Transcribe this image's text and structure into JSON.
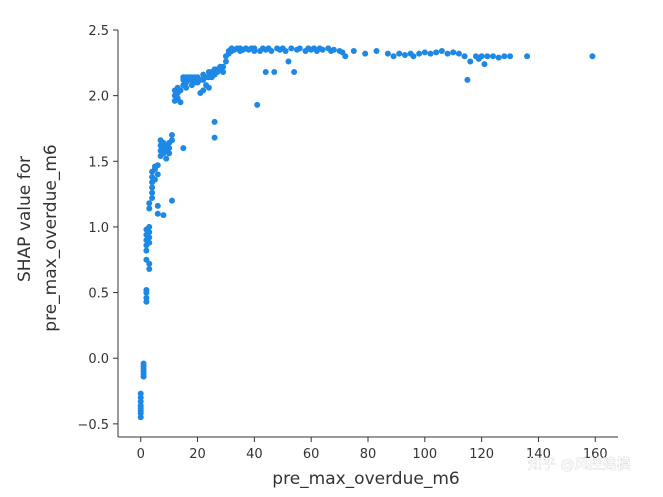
{
  "chart_data": {
    "type": "scatter",
    "xlabel": "pre_max_overdue_m6",
    "ylabel_lines": [
      "SHAP value for",
      "pre_max_overdue_m6"
    ],
    "x_ticks": [
      0,
      20,
      40,
      60,
      80,
      100,
      120,
      140,
      160
    ],
    "y_ticks": [
      -0.5,
      0.0,
      0.5,
      1.0,
      1.5,
      2.0,
      2.5
    ],
    "x_tick_labels": [
      "0",
      "20",
      "40",
      "60",
      "80",
      "100",
      "120",
      "140",
      "160"
    ],
    "y_tick_labels": [
      "−0.5",
      "0.0",
      "0.5",
      "1.0",
      "1.5",
      "2.0",
      "2.5"
    ],
    "xlim": [
      -8,
      168
    ],
    "ylim": [
      -0.6,
      2.5
    ],
    "grid": false,
    "point_color": "#1e88e5",
    "points": [
      [
        0,
        -0.45
      ],
      [
        0,
        -0.42
      ],
      [
        0,
        -0.4
      ],
      [
        0,
        -0.38
      ],
      [
        0,
        -0.36
      ],
      [
        0,
        -0.33
      ],
      [
        0,
        -0.3
      ],
      [
        0,
        -0.27
      ],
      [
        1,
        -0.14
      ],
      [
        1,
        -0.12
      ],
      [
        1,
        -0.1
      ],
      [
        1,
        -0.08
      ],
      [
        1,
        -0.06
      ],
      [
        1,
        -0.04
      ],
      [
        2,
        0.43
      ],
      [
        2,
        0.46
      ],
      [
        2,
        0.5
      ],
      [
        2,
        0.52
      ],
      [
        2,
        0.75
      ],
      [
        3,
        0.68
      ],
      [
        3,
        0.72
      ],
      [
        2,
        0.82
      ],
      [
        2,
        0.86
      ],
      [
        2,
        0.9
      ],
      [
        2,
        0.94
      ],
      [
        2,
        0.98
      ],
      [
        3,
        0.88
      ],
      [
        3,
        0.92
      ],
      [
        3,
        0.96
      ],
      [
        3,
        1.0
      ],
      [
        3,
        1.14
      ],
      [
        3,
        1.18
      ],
      [
        4,
        1.22
      ],
      [
        4,
        1.26
      ],
      [
        4,
        1.3
      ],
      [
        4,
        1.34
      ],
      [
        4,
        1.38
      ],
      [
        4,
        1.42
      ],
      [
        5,
        1.36
      ],
      [
        5,
        1.44
      ],
      [
        5,
        1.46
      ],
      [
        6,
        1.1
      ],
      [
        6,
        1.16
      ],
      [
        6,
        1.4
      ],
      [
        6,
        1.47
      ],
      [
        7,
        1.54
      ],
      [
        7,
        1.58
      ],
      [
        7,
        1.62
      ],
      [
        7,
        1.66
      ],
      [
        8,
        1.56
      ],
      [
        8,
        1.6
      ],
      [
        8,
        1.64
      ],
      [
        8,
        1.09
      ],
      [
        9,
        1.52
      ],
      [
        9,
        1.58
      ],
      [
        9,
        1.62
      ],
      [
        10,
        1.56
      ],
      [
        10,
        1.6
      ],
      [
        10,
        1.64
      ],
      [
        11,
        1.66
      ],
      [
        11,
        1.7
      ],
      [
        11,
        1.2
      ],
      [
        12,
        1.96
      ],
      [
        12,
        2.0
      ],
      [
        12,
        2.04
      ],
      [
        13,
        1.98
      ],
      [
        13,
        2.02
      ],
      [
        13,
        2.06
      ],
      [
        14,
        1.95
      ],
      [
        14,
        2.04
      ],
      [
        15,
        2.08
      ],
      [
        15,
        2.12
      ],
      [
        15,
        2.14
      ],
      [
        16,
        2.06
      ],
      [
        16,
        2.1
      ],
      [
        16,
        2.14
      ],
      [
        17,
        2.12
      ],
      [
        17,
        2.14
      ],
      [
        15,
        1.6
      ],
      [
        18,
        2.08
      ],
      [
        18,
        2.12
      ],
      [
        18,
        2.14
      ],
      [
        19,
        2.1
      ],
      [
        19,
        2.14
      ],
      [
        20,
        2.1
      ],
      [
        20,
        2.14
      ],
      [
        21,
        2.12
      ],
      [
        22,
        2.12
      ],
      [
        22,
        2.16
      ],
      [
        23,
        2.08
      ],
      [
        23,
        2.14
      ],
      [
        24,
        2.14
      ],
      [
        24,
        2.18
      ],
      [
        25,
        2.14
      ],
      [
        25,
        2.18
      ],
      [
        26,
        2.16
      ],
      [
        26,
        2.2
      ],
      [
        27,
        2.18
      ],
      [
        27,
        2.2
      ],
      [
        28,
        2.2
      ],
      [
        28,
        2.22
      ],
      [
        29,
        2.18
      ],
      [
        29,
        2.22
      ],
      [
        26,
        1.8
      ],
      [
        26,
        1.68
      ],
      [
        21,
        2.02
      ],
      [
        22,
        2.04
      ],
      [
        24,
        2.06
      ],
      [
        30,
        2.26
      ],
      [
        30,
        2.3
      ],
      [
        31,
        2.32
      ],
      [
        31,
        2.34
      ],
      [
        32,
        2.34
      ],
      [
        32,
        2.36
      ],
      [
        33,
        2.35
      ],
      [
        34,
        2.36
      ],
      [
        35,
        2.34
      ],
      [
        35,
        2.36
      ],
      [
        36,
        2.35
      ],
      [
        37,
        2.36
      ],
      [
        38,
        2.35
      ],
      [
        39,
        2.36
      ],
      [
        40,
        2.34
      ],
      [
        40,
        2.36
      ],
      [
        41,
        1.93
      ],
      [
        42,
        2.34
      ],
      [
        43,
        2.36
      ],
      [
        44,
        2.35
      ],
      [
        44,
        2.18
      ],
      [
        45,
        2.36
      ],
      [
        46,
        2.34
      ],
      [
        47,
        2.18
      ],
      [
        48,
        2.36
      ],
      [
        49,
        2.35
      ],
      [
        50,
        2.36
      ],
      [
        51,
        2.34
      ],
      [
        52,
        2.26
      ],
      [
        53,
        2.36
      ],
      [
        54,
        2.18
      ],
      [
        55,
        2.35
      ],
      [
        56,
        2.36
      ],
      [
        58,
        2.34
      ],
      [
        59,
        2.36
      ],
      [
        60,
        2.35
      ],
      [
        61,
        2.36
      ],
      [
        62,
        2.34
      ],
      [
        63,
        2.36
      ],
      [
        64,
        2.35
      ],
      [
        66,
        2.36
      ],
      [
        67,
        2.34
      ],
      [
        68,
        2.35
      ],
      [
        70,
        2.34
      ],
      [
        71,
        2.33
      ],
      [
        72,
        2.3
      ],
      [
        75,
        2.34
      ],
      [
        79,
        2.32
      ],
      [
        83,
        2.34
      ],
      [
        87,
        2.32
      ],
      [
        89,
        2.3
      ],
      [
        91,
        2.32
      ],
      [
        93,
        2.31
      ],
      [
        95,
        2.32
      ],
      [
        96,
        2.3
      ],
      [
        98,
        2.32
      ],
      [
        100,
        2.33
      ],
      [
        102,
        2.32
      ],
      [
        104,
        2.33
      ],
      [
        106,
        2.34
      ],
      [
        108,
        2.32
      ],
      [
        110,
        2.33
      ],
      [
        112,
        2.32
      ],
      [
        114,
        2.3
      ],
      [
        115,
        2.12
      ],
      [
        116,
        2.26
      ],
      [
        118,
        2.3
      ],
      [
        119,
        2.28
      ],
      [
        120,
        2.3
      ],
      [
        121,
        2.24
      ],
      [
        122,
        2.3
      ],
      [
        124,
        2.3
      ],
      [
        126,
        2.29
      ],
      [
        128,
        2.3
      ],
      [
        130,
        2.3
      ],
      [
        136,
        2.3
      ],
      [
        159,
        2.3
      ]
    ]
  },
  "watermark": {
    "text": "知乎 @风控建模"
  }
}
